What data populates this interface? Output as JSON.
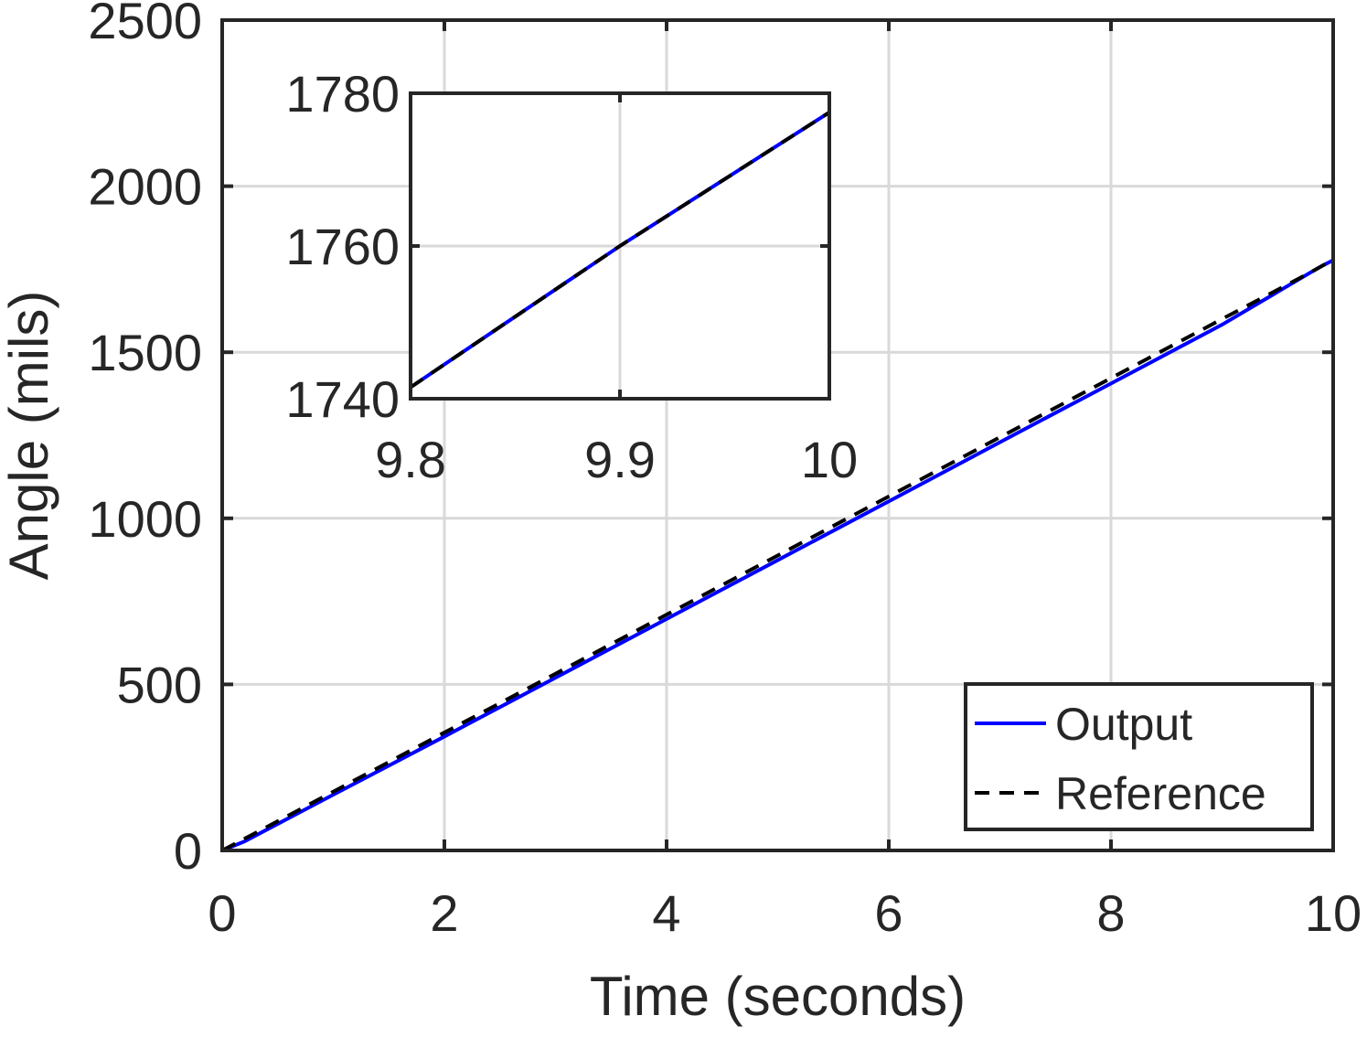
{
  "chart_data": {
    "type": "line",
    "title": "",
    "xlabel": "Time (seconds)",
    "ylabel": "Angle (mils)",
    "xlim": [
      0,
      10
    ],
    "ylim": [
      0,
      2500
    ],
    "xticks": [
      0,
      2,
      4,
      6,
      8,
      10
    ],
    "yticks": [
      0,
      500,
      1000,
      1500,
      2000,
      2500
    ],
    "grid": true,
    "legend_position": "bottom-right",
    "series": [
      {
        "name": "Output",
        "color": "#0000ff",
        "style": "solid",
        "x": [
          0,
          0.2,
          0.5,
          1,
          2,
          3,
          4,
          5,
          6,
          7,
          8,
          9,
          9.8,
          9.9,
          10
        ],
        "y": [
          0,
          27,
          80,
          168,
          343,
          520,
          697,
          874,
          1051,
          1229,
          1406,
          1583,
          1741,
          1760,
          1777
        ]
      },
      {
        "name": "Reference",
        "color": "#000000",
        "style": "dashed",
        "x": [
          0,
          0.2,
          0.5,
          1,
          2,
          3,
          4,
          5,
          6,
          7,
          8,
          9,
          9.8,
          9.9,
          10
        ],
        "y": [
          0,
          35,
          88,
          177,
          355,
          532,
          710,
          888,
          1066,
          1244,
          1422,
          1600,
          1741,
          1760,
          1777
        ]
      }
    ],
    "inset": {
      "xlim": [
        9.8,
        10
      ],
      "ylim": [
        1740,
        1780
      ],
      "xticks": [
        "9.8",
        "9.9",
        "10"
      ],
      "yticks": [
        "1740",
        "1760",
        "1780"
      ],
      "series": [
        {
          "name": "Output",
          "color": "#0000ff",
          "style": "solid",
          "x": [
            9.8,
            9.9,
            10
          ],
          "y": [
            1741.5,
            1760,
            1777.5
          ]
        },
        {
          "name": "Reference",
          "color": "#000000",
          "style": "dashed",
          "x": [
            9.8,
            9.9,
            10
          ],
          "y": [
            1741.5,
            1760,
            1777.5
          ]
        }
      ]
    }
  }
}
